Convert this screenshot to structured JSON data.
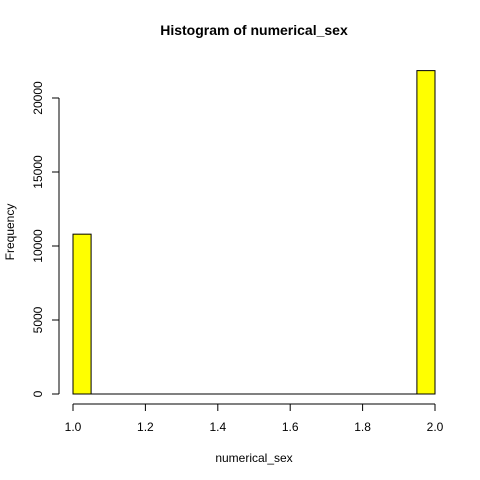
{
  "chart_data": {
    "type": "bar",
    "title": "Histogram of numerical_sex",
    "xlabel": "numerical_sex",
    "ylabel": "Frequency",
    "xlim": [
      1.0,
      2.0
    ],
    "ylim": [
      0,
      20000
    ],
    "x_ticks": [
      "1.0",
      "1.2",
      "1.4",
      "1.6",
      "1.8",
      "2.0"
    ],
    "y_ticks": [
      "0",
      "5000",
      "10000",
      "15000",
      "20000"
    ],
    "bins": [
      {
        "start": 1.0,
        "end": 1.05,
        "count": 10800
      },
      {
        "start": 1.05,
        "end": 1.1,
        "count": 0
      },
      {
        "start": 1.1,
        "end": 1.15,
        "count": 0
      },
      {
        "start": 1.15,
        "end": 1.2,
        "count": 0
      },
      {
        "start": 1.2,
        "end": 1.25,
        "count": 0
      },
      {
        "start": 1.25,
        "end": 1.3,
        "count": 0
      },
      {
        "start": 1.3,
        "end": 1.35,
        "count": 0
      },
      {
        "start": 1.35,
        "end": 1.4,
        "count": 0
      },
      {
        "start": 1.4,
        "end": 1.45,
        "count": 0
      },
      {
        "start": 1.45,
        "end": 1.5,
        "count": 0
      },
      {
        "start": 1.5,
        "end": 1.55,
        "count": 0
      },
      {
        "start": 1.55,
        "end": 1.6,
        "count": 0
      },
      {
        "start": 1.6,
        "end": 1.65,
        "count": 0
      },
      {
        "start": 1.65,
        "end": 1.7,
        "count": 0
      },
      {
        "start": 1.7,
        "end": 1.75,
        "count": 0
      },
      {
        "start": 1.75,
        "end": 1.8,
        "count": 0
      },
      {
        "start": 1.8,
        "end": 1.85,
        "count": 0
      },
      {
        "start": 1.85,
        "end": 1.9,
        "count": 0
      },
      {
        "start": 1.9,
        "end": 1.95,
        "count": 0
      },
      {
        "start": 1.95,
        "end": 2.0,
        "count": 21850
      }
    ],
    "bar_color": "#ffff00",
    "grid": false,
    "legend": "none"
  }
}
